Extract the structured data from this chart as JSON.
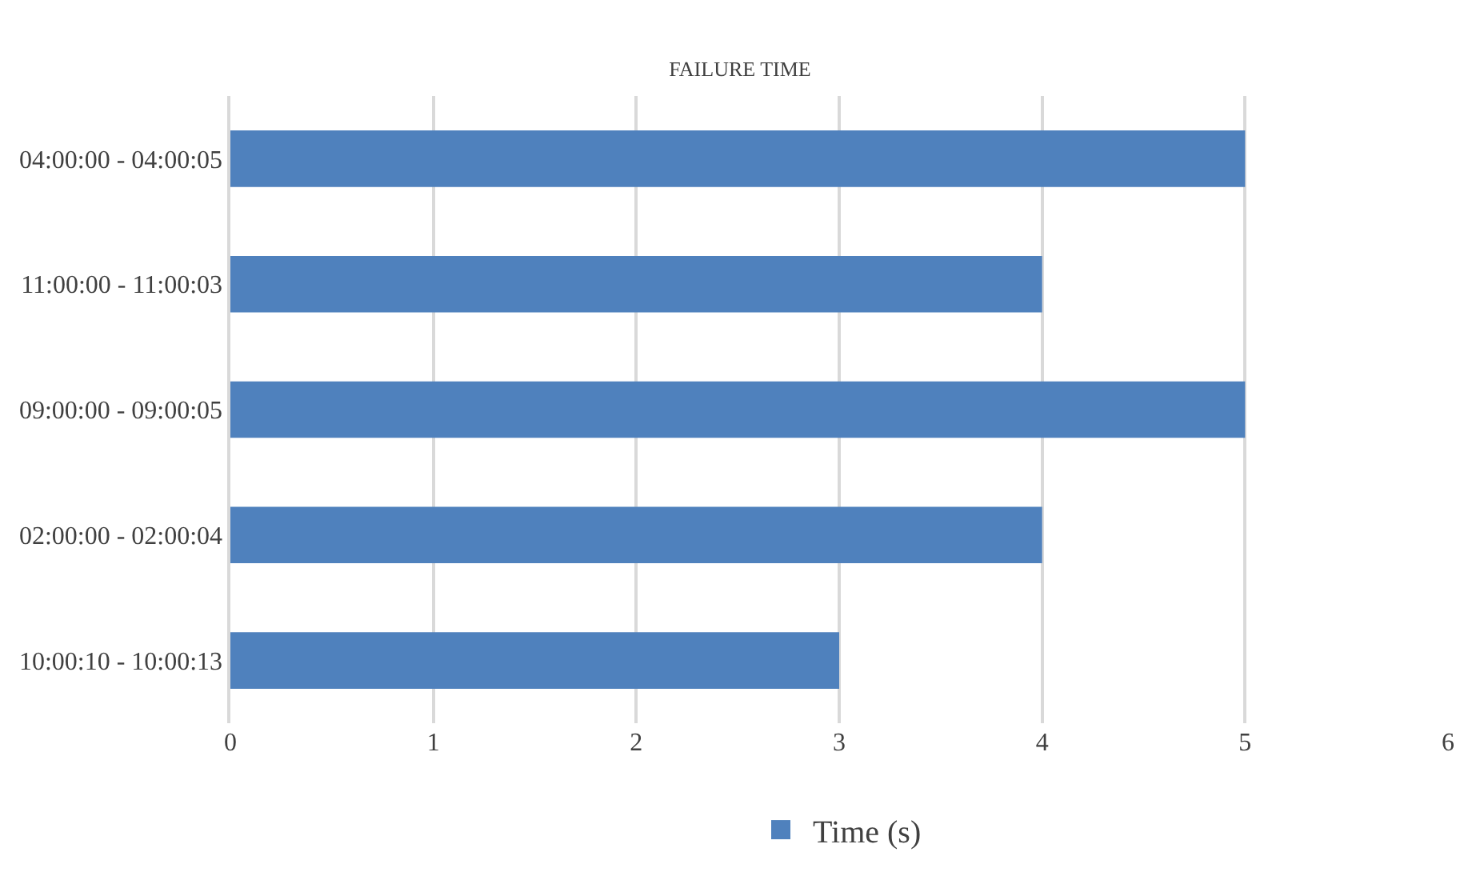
{
  "chart_data": {
    "type": "bar",
    "orientation": "horizontal",
    "title": "FAILURE TIME",
    "categories": [
      "04:00:00 - 04:00:05",
      "11:00:00 - 11:00:03",
      "09:00:00 - 09:00:05",
      "02:00:00 - 02:00:04",
      "10:00:10 - 10:00:13"
    ],
    "series": [
      {
        "name": "Time (s)",
        "color": "#4f81bd",
        "values": [
          5,
          4,
          5,
          4,
          3
        ]
      }
    ],
    "xlim": [
      0,
      6
    ],
    "xticks": [
      0,
      1,
      2,
      3,
      4,
      5,
      6
    ],
    "grid": "x",
    "legend": "bottom"
  }
}
